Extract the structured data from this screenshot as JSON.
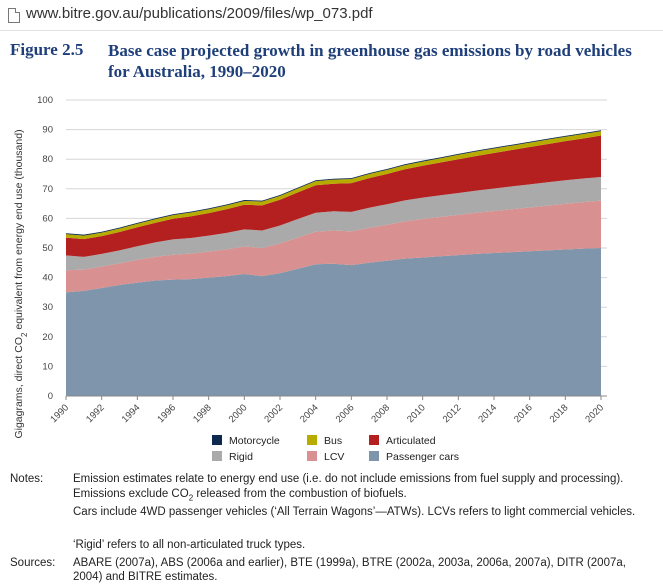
{
  "browser": {
    "url": "www.bitre.gov.au/publications/2009/files/wp_073.pdf"
  },
  "figure": {
    "number": "Figure 2.5",
    "title": "Base case projected growth in greenhouse gas emissions by road vehicles for Australia, 1990–2020"
  },
  "colors": {
    "passenger_cars": "#7f95ab",
    "lcv": "#d99090",
    "rigid": "#aaaaaa",
    "articulated": "#b41f1f",
    "bus": "#b8ab00",
    "motorcycle": "#0d2a4e"
  },
  "chart_data": {
    "type": "area",
    "stacked": true,
    "ylabel_pre": "Gigagrams, direct CO",
    "ylabel_sub": "2",
    "ylabel_post": " equivalent from energy end use (thousand)",
    "ylim": [
      0,
      100
    ],
    "yticks": [
      0,
      10,
      20,
      30,
      40,
      50,
      60,
      70,
      80,
      90,
      100
    ],
    "grid": true,
    "legend_position": "bottom",
    "x": [
      1990,
      1991,
      1992,
      1993,
      1994,
      1995,
      1996,
      1997,
      1998,
      1999,
      2000,
      2001,
      2002,
      2003,
      2004,
      2005,
      2006,
      2007,
      2008,
      2009,
      2010,
      2011,
      2012,
      2013,
      2014,
      2015,
      2016,
      2017,
      2018,
      2019,
      2020
    ],
    "xticks": [
      1990,
      1992,
      1994,
      1996,
      1998,
      2000,
      2002,
      2004,
      2006,
      2008,
      2010,
      2012,
      2014,
      2016,
      2018,
      2020
    ],
    "series": [
      {
        "name": "Passenger cars",
        "color_key": "passenger_cars",
        "values": [
          35,
          35.5,
          36.5,
          37.5,
          38.3,
          39,
          39.3,
          39.5,
          40,
          40.5,
          41.2,
          40.5,
          41.5,
          43,
          44.5,
          44.7,
          44.2,
          45,
          45.7,
          46.4,
          46.8,
          47.2,
          47.6,
          48,
          48.3,
          48.6,
          48.9,
          49.2,
          49.5,
          49.8,
          50
        ]
      },
      {
        "name": "LCV",
        "color_key": "lcv",
        "values": [
          7.5,
          7.2,
          7.2,
          7.3,
          7.7,
          8,
          8.4,
          8.6,
          8.8,
          9,
          9.3,
          9.5,
          10,
          10.5,
          11,
          11.2,
          11.4,
          11.8,
          12.1,
          12.6,
          13,
          13.3,
          13.6,
          13.9,
          14.2,
          14.5,
          14.8,
          15.1,
          15.4,
          15.7,
          16
        ]
      },
      {
        "name": "Rigid",
        "color_key": "rigid",
        "values": [
          5,
          4.3,
          4.3,
          4.4,
          4.6,
          4.9,
          5.2,
          5.3,
          5.4,
          5.6,
          5.8,
          5.9,
          6.1,
          6.3,
          6.4,
          6.5,
          6.6,
          6.8,
          7,
          7.1,
          7.2,
          7.3,
          7.4,
          7.5,
          7.6,
          7.7,
          7.8,
          7.9,
          8,
          8,
          8
        ]
      },
      {
        "name": "Articulated",
        "color_key": "articulated",
        "values": [
          6,
          6,
          6,
          6.2,
          6.4,
          6.6,
          7,
          7.3,
          7.6,
          8,
          8.3,
          8.5,
          8.7,
          9,
          9.3,
          9.3,
          9.7,
          10,
          10.2,
          10.5,
          10.8,
          11.1,
          11.4,
          11.7,
          12,
          12.3,
          12.6,
          12.9,
          13.2,
          13.5,
          14
        ]
      },
      {
        "name": "Bus",
        "color_key": "bus",
        "values": [
          1.2,
          1.2,
          1.2,
          1.2,
          1.2,
          1.2,
          1.2,
          1.3,
          1.3,
          1.3,
          1.3,
          1.3,
          1.3,
          1.3,
          1.4,
          1.4,
          1.4,
          1.4,
          1.4,
          1.4,
          1.4,
          1.4,
          1.5,
          1.5,
          1.5,
          1.5,
          1.5,
          1.5,
          1.5,
          1.5,
          1.5
        ]
      },
      {
        "name": "Motorcycle",
        "color_key": "motorcycle",
        "values": [
          0.3,
          0.3,
          0.3,
          0.3,
          0.3,
          0.3,
          0.3,
          0.3,
          0.3,
          0.3,
          0.3,
          0.3,
          0.3,
          0.3,
          0.3,
          0.3,
          0.3,
          0.3,
          0.3,
          0.3,
          0.3,
          0.3,
          0.3,
          0.3,
          0.3,
          0.3,
          0.3,
          0.3,
          0.3,
          0.3,
          0.3
        ]
      }
    ],
    "legend": [
      {
        "label": "Motorcycle",
        "color_key": "motorcycle"
      },
      {
        "label": "Bus",
        "color_key": "bus"
      },
      {
        "label": "Articulated",
        "color_key": "articulated"
      },
      {
        "label": "Rigid",
        "color_key": "rigid"
      },
      {
        "label": "LCV",
        "color_key": "lcv"
      },
      {
        "label": "Passenger cars",
        "color_key": "passenger_cars"
      }
    ]
  },
  "notes": {
    "notes_label": "Notes:",
    "note1": "Emission estimates relate to energy end use (i.e. do not include emissions from fuel supply and processing).",
    "note2_pre": "Emissions exclude CO",
    "note2_sub": "2",
    "note2_post": " released from the combustion of biofuels.",
    "note3": "Cars include 4WD passenger vehicles (‘All Terrain Wagons’—ATWs). LCVs refers to light commercial vehicles.",
    "note4": "‘Rigid’ refers to all non-articulated truck types.",
    "sources_label": "Sources:",
    "sources": "ABARE (2007a), ABS (2006a and earlier), BTE (1999a),  BTRE (2002a, 2003a, 2006a, 2007a), DITR (2007a, 2004) and BITRE estimates."
  }
}
